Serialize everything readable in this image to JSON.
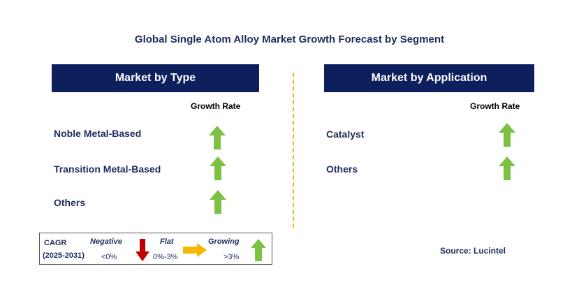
{
  "title": "Global Single Atom Alloy Market Growth Forecast by Segment",
  "type_panel": {
    "header": "Market by Type",
    "growth_label": "Growth Rate",
    "rows": [
      {
        "label": "Noble Metal-Based",
        "trend": "growing"
      },
      {
        "label": "Transition Metal-Based",
        "trend": "growing"
      },
      {
        "label": "Others",
        "trend": "growing"
      }
    ]
  },
  "application_panel": {
    "header": "Market by Application",
    "growth_label": "Growth Rate",
    "rows": [
      {
        "label": "Catalyst",
        "trend": "growing"
      },
      {
        "label": "Others",
        "trend": "growing"
      }
    ]
  },
  "legend": {
    "cagr_label": "CAGR",
    "period": "(2025-2031)",
    "negative": {
      "label": "Negative",
      "range": "<0%",
      "icon": "red-down-arrow-icon",
      "color": "#c00000"
    },
    "flat": {
      "label": "Flat",
      "range": "0%-3%",
      "icon": "yellow-right-arrow-icon",
      "color": "#f5b800"
    },
    "growing": {
      "label": "Growing",
      "range": ">3%",
      "icon": "green-up-arrow-icon",
      "color": "#7dc142"
    }
  },
  "source": "Source: Lucintel",
  "colors": {
    "header_bg": "#0d1f5c",
    "text": "#1f2d5c",
    "divider": "#f0b323"
  }
}
